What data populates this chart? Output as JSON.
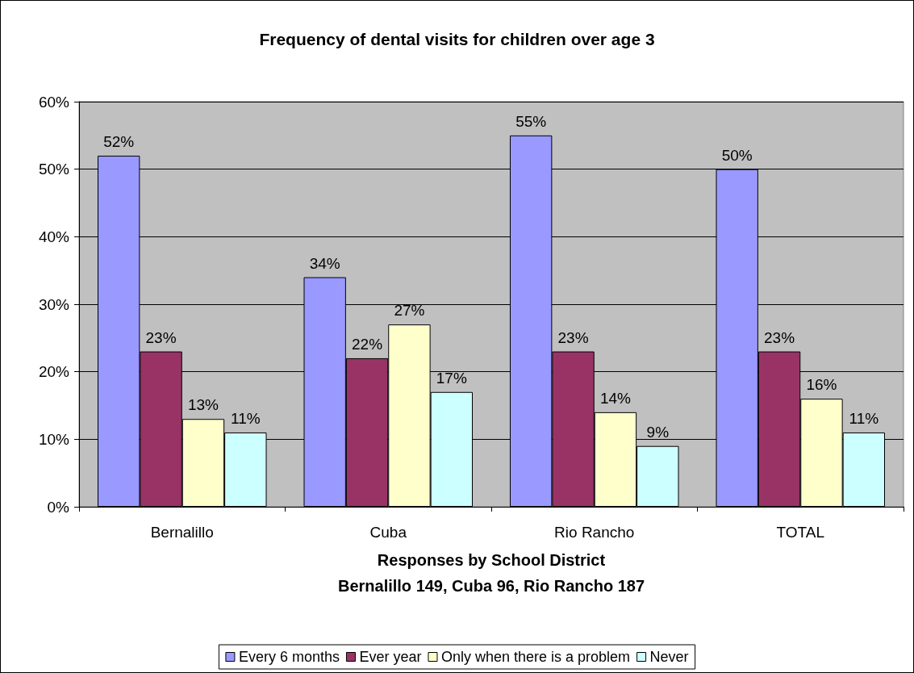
{
  "chart_data": {
    "type": "bar",
    "title": "Frequency of dental visits for children over age 3",
    "xlabel": "Responses by School District\nBernalillo 149, Cuba 96, Rio Rancho 187",
    "categories": [
      "Bernalillo",
      "Cuba",
      "Rio Rancho",
      "TOTAL"
    ],
    "series": [
      {
        "name": "Every 6 months",
        "color": "#9999ff",
        "values": [
          52,
          34,
          55,
          50
        ],
        "value_labels": [
          "52%",
          "34%",
          "55%",
          "50%"
        ]
      },
      {
        "name": "Ever year",
        "color": "#993366",
        "values": [
          23,
          22,
          23,
          23
        ],
        "value_labels": [
          "23%",
          "22%",
          "23%",
          "23%"
        ]
      },
      {
        "name": "Only when there is a problem",
        "color": "#ffffcc",
        "values": [
          13,
          27,
          14,
          16
        ],
        "value_labels": [
          "13%",
          "27%",
          "14%",
          "16%"
        ]
      },
      {
        "name": "Never",
        "color": "#ccffff",
        "values": [
          11,
          17,
          9,
          11
        ],
        "value_labels": [
          "11%",
          "17%",
          "9%",
          "11%"
        ]
      }
    ],
    "ylim": [
      0,
      60
    ],
    "yticks": [
      {
        "value": 0,
        "label": "0%"
      },
      {
        "value": 10,
        "label": "10%"
      },
      {
        "value": 20,
        "label": "20%"
      },
      {
        "value": 30,
        "label": "30%"
      },
      {
        "value": 40,
        "label": "40%"
      },
      {
        "value": 50,
        "label": "50%"
      },
      {
        "value": 60,
        "label": "60%"
      }
    ],
    "grid": "y",
    "legend": "bottom"
  }
}
